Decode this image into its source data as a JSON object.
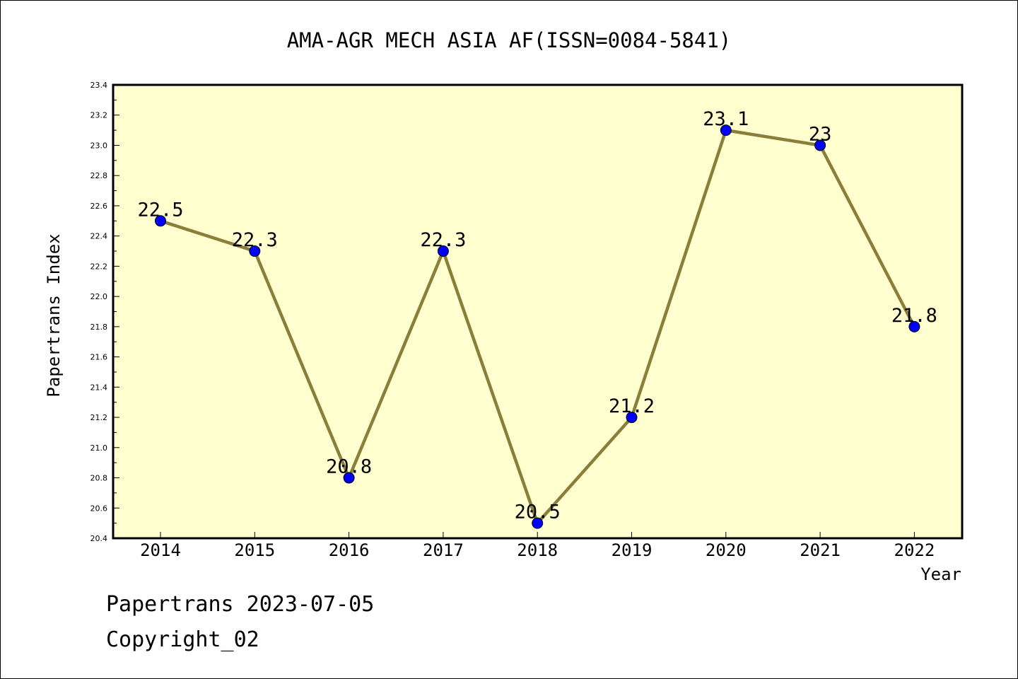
{
  "chart_data": {
    "type": "line",
    "title": "AMA-AGR MECH ASIA AF(ISSN=0084-5841)",
    "xlabel": "Year",
    "ylabel": "Papertrans Index",
    "categories": [
      "2014",
      "2015",
      "2016",
      "2017",
      "2018",
      "2019",
      "2020",
      "2021",
      "2022"
    ],
    "series": [
      {
        "values": [
          22.5,
          22.3,
          20.8,
          22.3,
          20.5,
          21.2,
          23.1,
          23.0,
          21.8
        ],
        "data_labels": [
          "22.5",
          "22.3",
          "20.8",
          "22.3",
          "20.5",
          "21.2",
          "23.1",
          "23",
          "21.8"
        ]
      }
    ],
    "ylim": [
      20.4,
      23.4
    ],
    "yticks": [
      "20.4",
      "20.6",
      "20.8",
      "21.0",
      "21.2",
      "21.4",
      "21.6",
      "21.8",
      "22.0",
      "22.2",
      "22.4",
      "22.6",
      "22.8",
      "23.0",
      "23.2",
      "23.4"
    ],
    "grid": false,
    "colors": {
      "plot_background": "#ffffd0",
      "line": "#8b7d3a",
      "marker": "#0000ff"
    }
  },
  "footer": {
    "line1": "Papertrans 2023-07-05",
    "line2": "Copyright_02"
  }
}
